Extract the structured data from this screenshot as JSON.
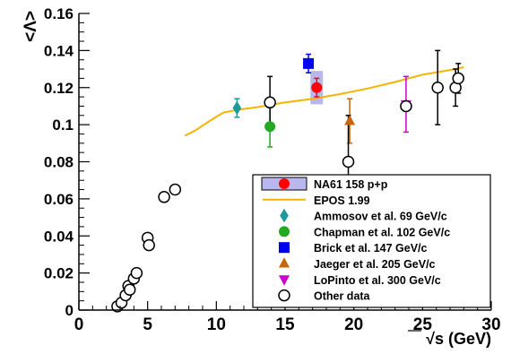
{
  "chart_data": {
    "type": "scatter",
    "xlabel": "√s (GeV)",
    "ylabel": "<Λ>",
    "xlim": [
      0,
      30
    ],
    "ylim": [
      0,
      0.16
    ],
    "x_ticks": [
      0,
      5,
      10,
      15,
      20,
      25,
      30
    ],
    "y_ticks": [
      0,
      0.02,
      0.04,
      0.06,
      0.08,
      0.1,
      0.12,
      0.14,
      0.16
    ],
    "x_tick_labels": [
      "0",
      "5",
      "10",
      "15",
      "20",
      "25",
      "30"
    ],
    "y_tick_labels": [
      "0",
      "0.02",
      "0.04",
      "0.06",
      "0.08",
      "0.1",
      "0.12",
      "0.14",
      "0.16"
    ],
    "grid": false,
    "legend_position": "bottom-right",
    "series": [
      {
        "name": "EPOS 1.99",
        "kind": "line",
        "color": "#f5b400",
        "points": [
          [
            7.7,
            0.094
          ],
          [
            8.5,
            0.097
          ],
          [
            9.5,
            0.102
          ],
          [
            10.5,
            0.1065
          ],
          [
            11.5,
            0.108
          ],
          [
            13,
            0.1095
          ],
          [
            15,
            0.112
          ],
          [
            17,
            0.114
          ],
          [
            19,
            0.1165
          ],
          [
            21,
            0.1195
          ],
          [
            23,
            0.123
          ],
          [
            25,
            0.127
          ],
          [
            27,
            0.1295
          ],
          [
            28,
            0.131
          ]
        ]
      },
      {
        "name": "NA61 158 p+p",
        "kind": "marker",
        "marker": "circle-filled",
        "color": "#ff0000",
        "band_color": "#b8b8ee",
        "points": [
          {
            "x": 17.3,
            "y": 0.12,
            "err": 0.005,
            "sys": 0.009
          }
        ]
      },
      {
        "name": "Ammosov et al. 69 GeV/c",
        "kind": "marker",
        "marker": "diamond",
        "color": "#1a9a9a",
        "points": [
          {
            "x": 11.5,
            "y": 0.109,
            "err": 0.005
          }
        ]
      },
      {
        "name": "Chapman et al. 102 GeV/c",
        "kind": "marker",
        "marker": "circle-filled",
        "color": "#22aa22",
        "points": [
          {
            "x": 13.9,
            "y": 0.099,
            "err": 0.011
          }
        ]
      },
      {
        "name": "Brick et al. 147 GeV/c",
        "kind": "marker",
        "marker": "square",
        "color": "#0000ee",
        "points": [
          {
            "x": 16.7,
            "y": 0.133,
            "err": 0.005
          }
        ]
      },
      {
        "name": "Jaeger et al. 205 GeV/c",
        "kind": "marker",
        "marker": "triangle-up",
        "color": "#c8640a",
        "points": [
          {
            "x": 19.7,
            "y": 0.102,
            "err": 0.012
          }
        ]
      },
      {
        "name": "LoPinto et al. 300 GeV/c",
        "kind": "marker",
        "marker": "triangle-down",
        "color": "#cc00cc",
        "points": [
          {
            "x": 23.8,
            "y": 0.111,
            "err": 0.015
          }
        ]
      },
      {
        "name": "Other data",
        "kind": "marker",
        "marker": "circle-open",
        "color": "#000000",
        "points": [
          {
            "x": 2.8,
            "y": 0.002,
            "err": 0
          },
          {
            "x": 3.1,
            "y": 0.004,
            "err": 0
          },
          {
            "x": 3.4,
            "y": 0.008,
            "err": 0
          },
          {
            "x": 3.6,
            "y": 0.013,
            "err": 0
          },
          {
            "x": 3.7,
            "y": 0.011,
            "err": 0
          },
          {
            "x": 4.0,
            "y": 0.017,
            "err": 0
          },
          {
            "x": 4.2,
            "y": 0.02,
            "err": 0
          },
          {
            "x": 5.0,
            "y": 0.039,
            "err": 0
          },
          {
            "x": 5.1,
            "y": 0.035,
            "err": 0
          },
          {
            "x": 6.2,
            "y": 0.061,
            "err": 0
          },
          {
            "x": 7.0,
            "y": 0.065,
            "err": 0
          },
          {
            "x": 13.9,
            "y": 0.112,
            "err": 0.014
          },
          {
            "x": 19.6,
            "y": 0.08,
            "err": 0.025
          },
          {
            "x": 23.8,
            "y": 0.11,
            "err": 0
          },
          {
            "x": 26.1,
            "y": 0.12,
            "err": 0.02
          },
          {
            "x": 27.4,
            "y": 0.12,
            "err": 0.01
          },
          {
            "x": 27.6,
            "y": 0.125,
            "err": 0.008
          }
        ]
      }
    ],
    "legend": [
      {
        "label": "NA61 158 p+p",
        "marker": "circle-filled",
        "color": "#ff0000",
        "band": true
      },
      {
        "label": "EPOS 1.99",
        "marker": "line",
        "color": "#f5b400"
      },
      {
        "label": "Ammosov et al. 69 GeV/c",
        "marker": "diamond",
        "color": "#1a9a9a"
      },
      {
        "label": "Chapman et al. 102 GeV/c",
        "marker": "circle-filled",
        "color": "#22aa22"
      },
      {
        "label": "Brick et al. 147 GeV/c",
        "marker": "square",
        "color": "#0000ee"
      },
      {
        "label": "Jaeger et al. 205 GeV/c",
        "marker": "triangle-up",
        "color": "#c8640a"
      },
      {
        "label": "LoPinto et al. 300 GeV/c",
        "marker": "triangle-down",
        "color": "#cc00cc"
      },
      {
        "label": "Other data",
        "marker": "circle-open",
        "color": "#000000"
      }
    ]
  }
}
